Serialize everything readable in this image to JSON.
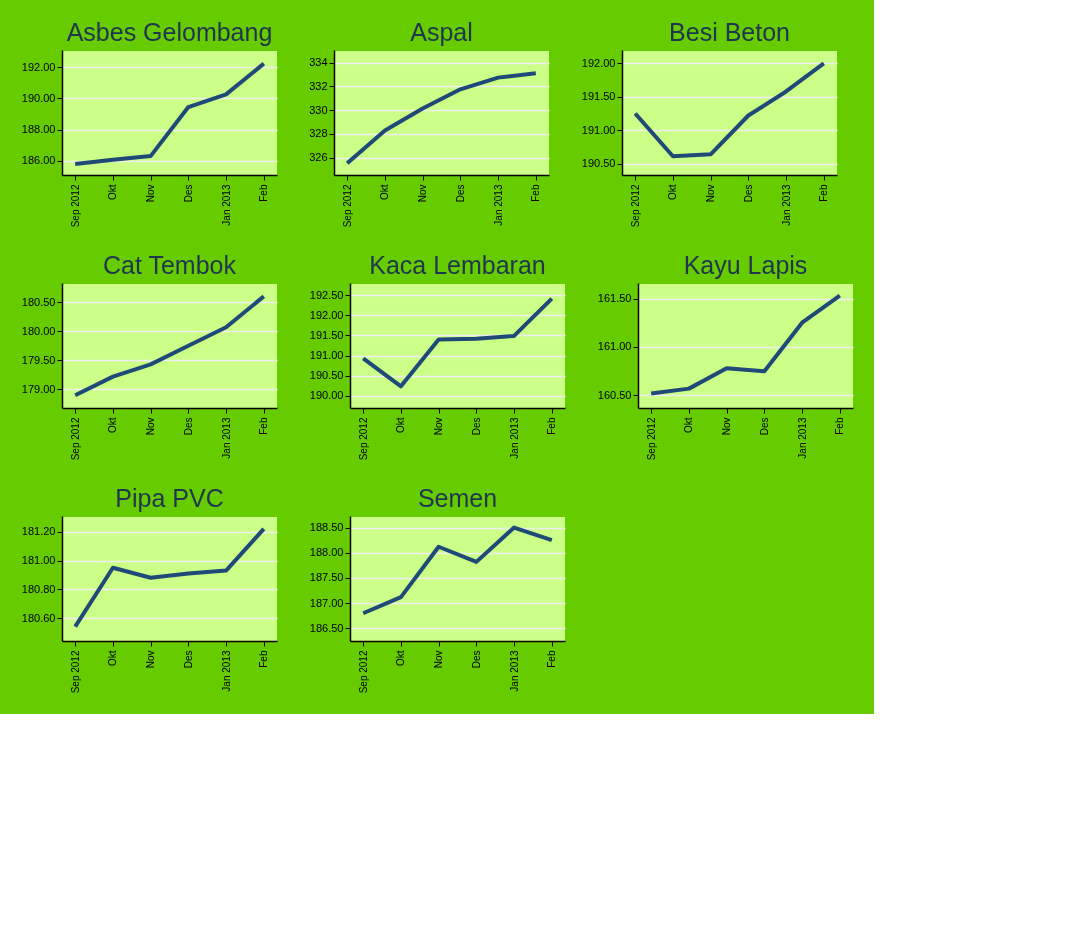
{
  "chart_data": [
    {
      "type": "line",
      "title": "Asbes Gelombang",
      "categories": [
        "Sep 2012",
        "Okt",
        "Nov",
        "Des",
        "Jan 2013",
        "Feb"
      ],
      "series": [
        {
          "color": "#1f4a78",
          "values": [
            185.81,
            186.08,
            186.31,
            189.45,
            190.26,
            192.23
          ]
        }
      ],
      "ylim": [
        185.1,
        193.1
      ],
      "yticks": [
        {
          "value": 186,
          "label": "186.00"
        },
        {
          "value": 188,
          "label": "188.00"
        },
        {
          "value": 190,
          "label": "190.00"
        },
        {
          "value": 192,
          "label": "192.00"
        }
      ],
      "grid": "y"
    },
    {
      "type": "line",
      "title": "Aspal",
      "categories": [
        "Sep 2012",
        "Okt",
        "Nov",
        "Des",
        "Jan 2013",
        "Feb"
      ],
      "series": [
        {
          "color": "#1f4a78",
          "values": [
            325.54,
            328.29,
            330.14,
            331.75,
            332.73,
            333.09
          ]
        }
      ],
      "ylim": [
        324.55,
        335.05
      ],
      "yticks": [
        326,
        328,
        330,
        332,
        334
      ],
      "grid": "y"
    },
    {
      "type": "line",
      "title": "Besi Beton",
      "categories": [
        "Sep 2012",
        "Okt",
        "Nov",
        "Des",
        "Jan 2013",
        "Feb"
      ],
      "series": [
        {
          "color": "#1f4a78",
          "values": [
            191.25,
            190.61,
            190.64,
            191.22,
            191.58,
            192.0
          ]
        }
      ],
      "ylim": [
        190.33,
        192.2
      ],
      "yticks": [
        {
          "value": 190.5,
          "label": "190.50"
        },
        {
          "value": 191,
          "label": "191.00"
        },
        {
          "value": 191.5,
          "label": "191.50"
        },
        {
          "value": 192,
          "label": "192.00"
        }
      ],
      "grid": "y"
    },
    {
      "type": "line",
      "title": "Cat Tembok",
      "categories": [
        "Sep 2012",
        "Okt",
        "Nov",
        "Des",
        "Jan 2013",
        "Feb"
      ],
      "series": [
        {
          "color": "#1f4a78",
          "values": [
            178.9,
            179.22,
            179.43,
            179.75,
            180.07,
            180.6
          ]
        }
      ],
      "ylim": [
        178.68,
        180.83
      ],
      "yticks": [
        {
          "value": 179,
          "label": "179.00"
        },
        {
          "value": 179.5,
          "label": "179.50"
        },
        {
          "value": 180,
          "label": "180.00"
        },
        {
          "value": 180.5,
          "label": "180.50"
        }
      ],
      "grid": "y"
    },
    {
      "type": "line",
      "title": "Kaca Lembaran",
      "categories": [
        "Sep 2012",
        "Okt",
        "Nov",
        "Des",
        "Jan 2013",
        "Feb"
      ],
      "series": [
        {
          "color": "#1f4a78",
          "values": [
            190.93,
            190.23,
            191.4,
            191.42,
            191.49,
            192.42
          ]
        }
      ],
      "ylim": [
        189.69,
        192.81
      ],
      "yticks": [
        {
          "value": 190,
          "label": "190.00"
        },
        {
          "value": 190.5,
          "label": "190.50"
        },
        {
          "value": 191,
          "label": "191.00"
        },
        {
          "value": 191.5,
          "label": "191.50"
        },
        {
          "value": 192,
          "label": "192.00"
        },
        {
          "value": 192.5,
          "label": "192.50"
        }
      ],
      "grid": "y"
    },
    {
      "type": "line",
      "title": "Kayu Lapis",
      "categories": [
        "Sep 2012",
        "Okt",
        "Nov",
        "Des",
        "Jan 2013",
        "Feb"
      ],
      "series": [
        {
          "color": "#1f4a78",
          "values": [
            160.52,
            160.57,
            160.78,
            160.75,
            161.25,
            161.53
          ]
        }
      ],
      "ylim": [
        160.37,
        161.66
      ],
      "yticks": [
        {
          "value": 160.5,
          "label": "160.50"
        },
        {
          "value": 161,
          "label": "161.00"
        },
        {
          "value": 161.5,
          "label": "161.50"
        }
      ],
      "grid": "y"
    },
    {
      "type": "line",
      "title": "Pipa PVC",
      "categories": [
        "Sep 2012",
        "Okt",
        "Nov",
        "Des",
        "Jan 2013",
        "Feb"
      ],
      "series": [
        {
          "color": "#1f4a78",
          "values": [
            180.54,
            180.95,
            180.88,
            180.91,
            180.93,
            181.22
          ]
        }
      ],
      "ylim": [
        180.44,
        181.31
      ],
      "yticks": [
        {
          "value": 180.6,
          "label": "180.60"
        },
        {
          "value": 180.8,
          "label": "180.80"
        },
        {
          "value": 181,
          "label": "181.00"
        },
        {
          "value": 181.2,
          "label": "181.20"
        }
      ],
      "grid": "y"
    },
    {
      "type": "line",
      "title": "Semen",
      "categories": [
        "Sep 2012",
        "Okt",
        "Nov",
        "Des",
        "Jan 2013",
        "Feb"
      ],
      "series": [
        {
          "color": "#1f4a78",
          "values": [
            186.8,
            187.12,
            188.12,
            187.82,
            188.5,
            188.25
          ]
        }
      ],
      "ylim": [
        186.25,
        188.73
      ],
      "yticks": [
        {
          "value": 186.5,
          "label": "186.50"
        },
        {
          "value": 187,
          "label": "187.00"
        },
        {
          "value": 187.5,
          "label": "187.50"
        },
        {
          "value": 188,
          "label": "188.00"
        },
        {
          "value": 188.5,
          "label": "188.50"
        }
      ],
      "grid": "y"
    }
  ]
}
